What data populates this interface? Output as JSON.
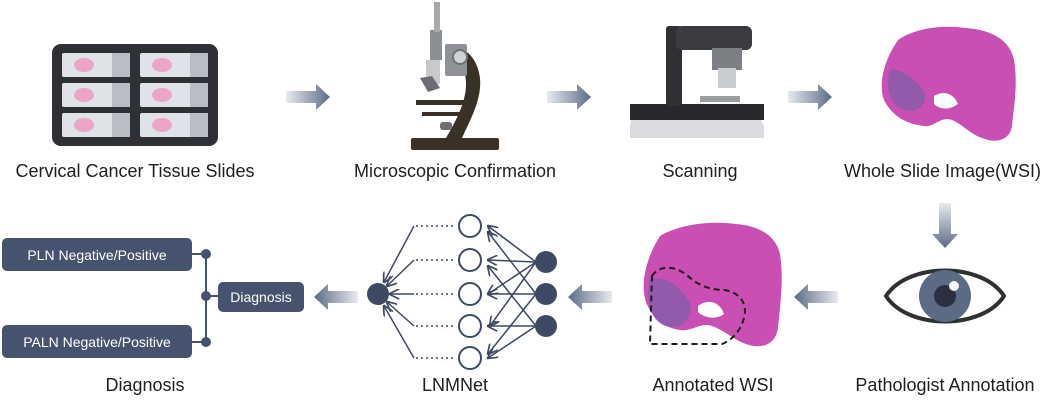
{
  "steps": {
    "slides": "Cervical Cancer Tissue Slides",
    "microscope": "Microscopic Confirmation",
    "scanning": "Scanning",
    "wsi": "Whole Slide Image(WSI)",
    "pathologist": "Pathologist Annotation",
    "annotated": "Annotated WSI",
    "lnmnet": "LNMNet",
    "diagnosis": "Diagnosis"
  },
  "outputs": {
    "pln": "PLN Negative/Positive",
    "diagnosis_box": "Diagnosis",
    "paln": "PALN Negative/Positive"
  },
  "colors": {
    "arrow": "#5b6b86",
    "node_dark": "#3e4a63",
    "tissue": "#c94fb3",
    "box": "#45536e"
  }
}
